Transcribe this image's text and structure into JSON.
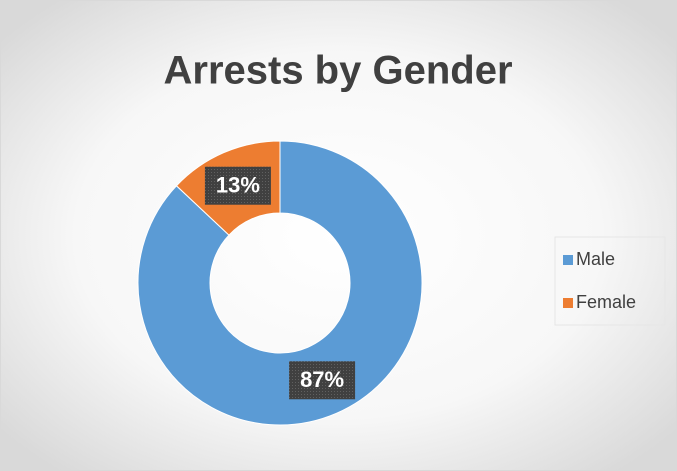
{
  "chart_data": {
    "type": "donut",
    "title": "Arrests by Gender",
    "categories": [
      "Male",
      "Female"
    ],
    "values": [
      87,
      13
    ],
    "value_labels": [
      "87%",
      "13%"
    ],
    "colors": [
      "#5b9bd5",
      "#ed7d31"
    ],
    "legend": "right"
  }
}
